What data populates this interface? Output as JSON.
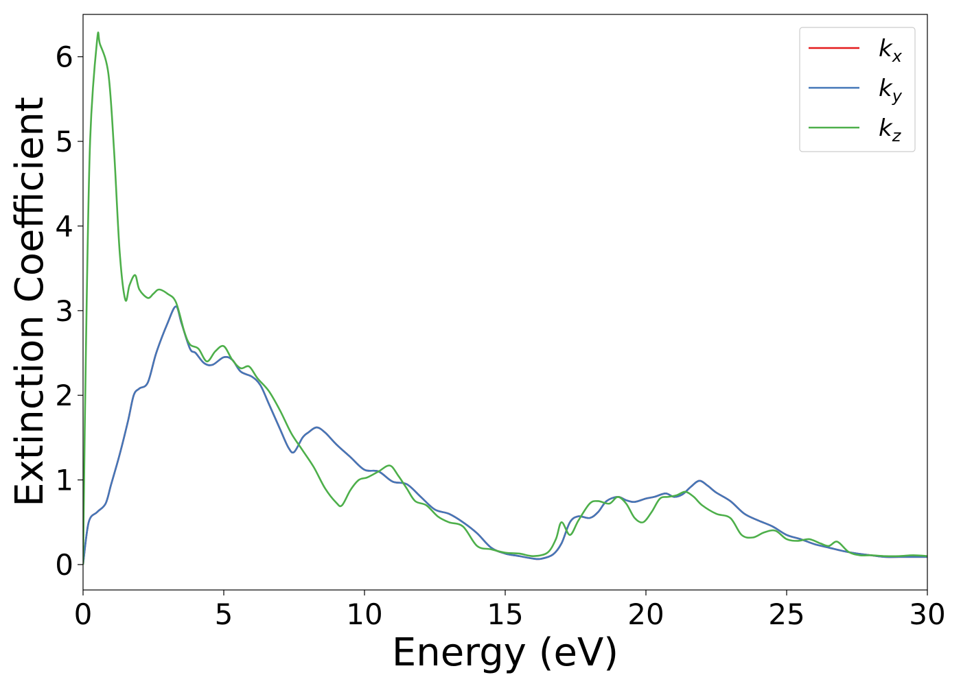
{
  "chart_data": {
    "type": "line",
    "xlabel": "Energy (eV)",
    "ylabel": "Extinction Coefficient",
    "xlim": [
      0,
      30
    ],
    "ylim": [
      -0.3,
      6.5
    ],
    "xticks": [
      "0",
      "5",
      "10",
      "15",
      "20",
      "25",
      "30"
    ],
    "yticks": [
      "0",
      "1",
      "2",
      "3",
      "4",
      "5",
      "6"
    ],
    "grid": false,
    "legend_position": "top-right",
    "series": [
      {
        "name": "k_x",
        "legend_base": "k",
        "legend_sub": "x",
        "color": "#e41a1c",
        "x": [
          0,
          0.2,
          0.5,
          0.8,
          1.0,
          1.3,
          1.6,
          1.8,
          2.0,
          2.3,
          2.6,
          3.0,
          3.3,
          3.5,
          3.8,
          4.0,
          4.3,
          4.6,
          5.0,
          5.3,
          5.6,
          6.0,
          6.3,
          6.6,
          7.0,
          7.3,
          7.5,
          7.8,
          8.0,
          8.3,
          8.6,
          9.0,
          9.5,
          10.0,
          10.5,
          11.0,
          11.5,
          12.0,
          12.5,
          13.0,
          13.5,
          14.0,
          14.5,
          15.0,
          15.5,
          16.0,
          16.3,
          16.7,
          17.0,
          17.3,
          17.6,
          18.0,
          18.3,
          18.6,
          19.0,
          19.3,
          19.6,
          20.0,
          20.3,
          20.7,
          21.0,
          21.3,
          21.6,
          21.9,
          22.2,
          22.5,
          23.0,
          23.5,
          24.0,
          24.5,
          25.0,
          25.5,
          26.0,
          26.5,
          27.0,
          27.5,
          28.0,
          28.5,
          29.0,
          29.5,
          30.0
        ],
        "y": [
          0.0,
          0.5,
          0.62,
          0.72,
          0.95,
          1.3,
          1.7,
          2.0,
          2.08,
          2.15,
          2.5,
          2.85,
          3.05,
          2.85,
          2.55,
          2.5,
          2.38,
          2.36,
          2.45,
          2.42,
          2.28,
          2.22,
          2.12,
          1.9,
          1.6,
          1.38,
          1.33,
          1.5,
          1.56,
          1.62,
          1.56,
          1.42,
          1.27,
          1.12,
          1.1,
          0.98,
          0.95,
          0.8,
          0.65,
          0.6,
          0.5,
          0.37,
          0.2,
          0.13,
          0.1,
          0.07,
          0.07,
          0.12,
          0.25,
          0.5,
          0.57,
          0.55,
          0.62,
          0.75,
          0.8,
          0.76,
          0.74,
          0.78,
          0.8,
          0.84,
          0.8,
          0.83,
          0.92,
          0.99,
          0.93,
          0.85,
          0.75,
          0.6,
          0.52,
          0.45,
          0.35,
          0.3,
          0.24,
          0.2,
          0.16,
          0.13,
          0.11,
          0.09,
          0.09,
          0.09,
          0.09
        ]
      },
      {
        "name": "k_y",
        "legend_base": "k",
        "legend_sub": "y",
        "color": "#4377b8",
        "x": [
          0,
          0.2,
          0.5,
          0.8,
          1.0,
          1.3,
          1.6,
          1.8,
          2.0,
          2.3,
          2.6,
          3.0,
          3.3,
          3.5,
          3.8,
          4.0,
          4.3,
          4.6,
          5.0,
          5.3,
          5.6,
          6.0,
          6.3,
          6.6,
          7.0,
          7.3,
          7.5,
          7.8,
          8.0,
          8.3,
          8.6,
          9.0,
          9.5,
          10.0,
          10.5,
          11.0,
          11.5,
          12.0,
          12.5,
          13.0,
          13.5,
          14.0,
          14.5,
          15.0,
          15.5,
          16.0,
          16.3,
          16.7,
          17.0,
          17.3,
          17.6,
          18.0,
          18.3,
          18.6,
          19.0,
          19.3,
          19.6,
          20.0,
          20.3,
          20.7,
          21.0,
          21.3,
          21.6,
          21.9,
          22.2,
          22.5,
          23.0,
          23.5,
          24.0,
          24.5,
          25.0,
          25.5,
          26.0,
          26.5,
          27.0,
          27.5,
          28.0,
          28.5,
          29.0,
          29.5,
          30.0
        ],
        "y": [
          0.0,
          0.5,
          0.62,
          0.72,
          0.95,
          1.3,
          1.7,
          2.0,
          2.08,
          2.15,
          2.5,
          2.85,
          3.05,
          2.85,
          2.55,
          2.5,
          2.38,
          2.36,
          2.45,
          2.42,
          2.28,
          2.22,
          2.12,
          1.9,
          1.6,
          1.38,
          1.33,
          1.5,
          1.56,
          1.62,
          1.56,
          1.42,
          1.27,
          1.12,
          1.1,
          0.98,
          0.95,
          0.8,
          0.65,
          0.6,
          0.5,
          0.37,
          0.2,
          0.13,
          0.1,
          0.07,
          0.07,
          0.12,
          0.25,
          0.5,
          0.57,
          0.55,
          0.62,
          0.75,
          0.8,
          0.76,
          0.74,
          0.78,
          0.8,
          0.84,
          0.8,
          0.83,
          0.92,
          0.99,
          0.93,
          0.85,
          0.75,
          0.6,
          0.52,
          0.45,
          0.35,
          0.3,
          0.24,
          0.2,
          0.16,
          0.13,
          0.11,
          0.09,
          0.09,
          0.09,
          0.09
        ]
      },
      {
        "name": "k_z",
        "legend_base": "k",
        "legend_sub": "z",
        "color": "#4daf4a",
        "x": [
          0,
          0.1,
          0.25,
          0.5,
          0.6,
          0.9,
          1.1,
          1.3,
          1.5,
          1.65,
          1.85,
          2.0,
          2.3,
          2.5,
          2.7,
          3.0,
          3.3,
          3.6,
          3.8,
          4.1,
          4.4,
          4.7,
          5.0,
          5.3,
          5.6,
          5.9,
          6.2,
          6.6,
          7.0,
          7.4,
          7.8,
          8.2,
          8.6,
          9.0,
          9.2,
          9.5,
          9.8,
          10.1,
          10.5,
          10.9,
          11.2,
          11.5,
          11.8,
          12.2,
          12.6,
          13.0,
          13.5,
          14.0,
          14.5,
          15.0,
          15.5,
          16.0,
          16.5,
          16.8,
          17.0,
          17.3,
          17.6,
          18.0,
          18.3,
          18.7,
          19.0,
          19.3,
          19.6,
          19.9,
          20.2,
          20.5,
          20.8,
          21.1,
          21.4,
          21.7,
          22.0,
          22.5,
          23.0,
          23.4,
          23.8,
          24.2,
          24.6,
          25.0,
          25.4,
          25.8,
          26.2,
          26.5,
          26.8,
          27.2,
          27.6,
          28.0,
          28.5,
          29.0,
          29.5,
          30.0
        ],
        "y": [
          0.0,
          2.5,
          5.0,
          6.2,
          6.15,
          5.8,
          4.9,
          3.7,
          3.13,
          3.3,
          3.42,
          3.25,
          3.15,
          3.2,
          3.25,
          3.2,
          3.1,
          2.75,
          2.6,
          2.55,
          2.4,
          2.52,
          2.58,
          2.42,
          2.32,
          2.34,
          2.2,
          2.05,
          1.82,
          1.55,
          1.35,
          1.15,
          0.9,
          0.73,
          0.7,
          0.88,
          1.0,
          1.03,
          1.1,
          1.17,
          1.05,
          0.9,
          0.75,
          0.7,
          0.57,
          0.5,
          0.45,
          0.22,
          0.18,
          0.14,
          0.13,
          0.1,
          0.14,
          0.3,
          0.5,
          0.35,
          0.52,
          0.72,
          0.75,
          0.72,
          0.8,
          0.72,
          0.55,
          0.5,
          0.62,
          0.78,
          0.8,
          0.82,
          0.86,
          0.8,
          0.7,
          0.6,
          0.55,
          0.35,
          0.32,
          0.38,
          0.4,
          0.3,
          0.28,
          0.3,
          0.25,
          0.22,
          0.27,
          0.15,
          0.11,
          0.11,
          0.1,
          0.1,
          0.11,
          0.1
        ]
      }
    ]
  }
}
